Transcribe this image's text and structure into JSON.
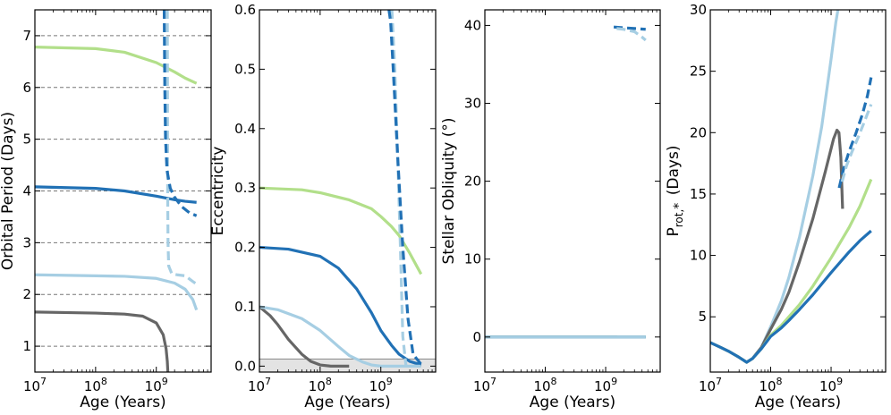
{
  "figure": {
    "n_panels": 4
  },
  "colors": {
    "dark_blue": "#2171b5",
    "light_blue": "#a6cee3",
    "light_green": "#b2df8a",
    "gray": "#666666",
    "gridline": "#777777",
    "shade": "#e3e3e3"
  },
  "chart_data": [
    {
      "type": "line",
      "id": "period",
      "title": "",
      "xlabel": "Age (Years)",
      "ylabel": "Orbital Period (Days)",
      "xscale": "log",
      "xlim": [
        10000000,
        8000000000
      ],
      "ylim": [
        0.5,
        7.5
      ],
      "x_ticks": [
        {
          "value": 10000000,
          "base": "10",
          "exp": "7"
        },
        {
          "value": 100000000,
          "base": "10",
          "exp": "8"
        },
        {
          "value": 1000000000,
          "base": "10",
          "exp": "9"
        }
      ],
      "y_ticks": [
        1,
        2,
        3,
        4,
        5,
        6,
        7
      ],
      "hlines": {
        "values": [
          1,
          2,
          3,
          4,
          5,
          6,
          7
        ],
        "style": "dashed"
      },
      "series": [
        {
          "name": "gray",
          "color": "#666666",
          "dash": false,
          "x": [
            10000000,
            30000000,
            100000000,
            300000000,
            600000000,
            1000000000,
            1300000000,
            1450000000,
            1520000000,
            1550000000
          ],
          "y": [
            1.66,
            1.65,
            1.64,
            1.62,
            1.58,
            1.45,
            1.22,
            0.95,
            0.7,
            0.5
          ]
        },
        {
          "name": "light blue",
          "color": "#a6cee3",
          "dash": false,
          "x": [
            10000000,
            100000000,
            300000000,
            1000000000,
            2000000000,
            3000000000,
            4000000000,
            4600000000
          ],
          "y": [
            2.38,
            2.36,
            2.35,
            2.31,
            2.22,
            2.1,
            1.9,
            1.7
          ]
        },
        {
          "name": "dark blue",
          "color": "#2171b5",
          "dash": false,
          "x": [
            10000000,
            100000000,
            300000000,
            1000000000,
            2000000000,
            3000000000,
            4600000000
          ],
          "y": [
            4.08,
            4.05,
            4.0,
            3.9,
            3.83,
            3.8,
            3.78
          ]
        },
        {
          "name": "light green",
          "color": "#b2df8a",
          "dash": false,
          "x": [
            10000000,
            100000000,
            300000000,
            1000000000,
            2000000000,
            3000000000,
            4600000000
          ],
          "y": [
            6.78,
            6.75,
            6.68,
            6.48,
            6.3,
            6.18,
            6.08
          ]
        },
        {
          "name": "light blue (dashed)",
          "color": "#a6cee3",
          "dash": true,
          "x": [
            1520000000,
            1540000000,
            1560000000,
            1600000000,
            1800000000,
            2200000000,
            3000000000,
            4000000000,
            4600000000
          ],
          "y": [
            7.5,
            4.0,
            3.0,
            2.55,
            2.4,
            2.38,
            2.36,
            2.25,
            2.2
          ]
        },
        {
          "name": "dark blue (dashed)",
          "color": "#2171b5",
          "dash": true,
          "x": [
            1350000000,
            1380000000,
            1420000000,
            1500000000,
            1700000000,
            2000000000,
            2600000000,
            3500000000,
            4600000000
          ],
          "y": [
            7.5,
            6.0,
            5.0,
            4.4,
            4.05,
            3.88,
            3.7,
            3.58,
            3.52
          ]
        }
      ]
    },
    {
      "type": "line",
      "id": "eccentricity",
      "title": "",
      "xlabel": "Age (Years)",
      "ylabel": "Eccentricity",
      "xscale": "log",
      "xlim": [
        10000000,
        8000000000
      ],
      "ylim": [
        -0.01,
        0.6
      ],
      "x_ticks": [
        {
          "value": 10000000,
          "base": "10",
          "exp": "7"
        },
        {
          "value": 100000000,
          "base": "10",
          "exp": "8"
        },
        {
          "value": 1000000000,
          "base": "10",
          "exp": "9"
        }
      ],
      "y_ticks": [
        "0.0",
        "0.1",
        "0.2",
        "0.3",
        "0.4",
        "0.5",
        "0.6"
      ],
      "shaded_band": {
        "y_from": -0.01,
        "y_to": 0.012
      },
      "series": [
        {
          "name": "gray",
          "color": "#666666",
          "dash": false,
          "x": [
            10000000,
            15000000,
            20000000,
            30000000,
            50000000,
            70000000,
            100000000,
            150000000,
            200000000,
            300000000
          ],
          "y": [
            0.1,
            0.085,
            0.07,
            0.045,
            0.02,
            0.008,
            0.002,
            0.0,
            0.0,
            0.0
          ]
        },
        {
          "name": "light blue",
          "color": "#a6cee3",
          "dash": false,
          "x": [
            10000000,
            20000000,
            50000000,
            100000000,
            200000000,
            300000000,
            500000000,
            700000000,
            1000000000,
            2000000000,
            4600000000
          ],
          "y": [
            0.1,
            0.095,
            0.08,
            0.06,
            0.033,
            0.018,
            0.007,
            0.002,
            0.0,
            0.0,
            0.0
          ]
        },
        {
          "name": "dark blue",
          "color": "#2171b5",
          "dash": false,
          "x": [
            10000000,
            30000000,
            100000000,
            200000000,
            400000000,
            700000000,
            1000000000,
            1500000000,
            2000000000,
            3000000000,
            4600000000
          ],
          "y": [
            0.2,
            0.197,
            0.185,
            0.165,
            0.13,
            0.09,
            0.06,
            0.035,
            0.02,
            0.008,
            0.002
          ]
        },
        {
          "name": "light green",
          "color": "#b2df8a",
          "dash": false,
          "x": [
            10000000,
            50000000,
            100000000,
            300000000,
            700000000,
            1000000000,
            1500000000,
            2000000000,
            3000000000,
            4600000000
          ],
          "y": [
            0.3,
            0.297,
            0.292,
            0.28,
            0.265,
            0.252,
            0.235,
            0.22,
            0.19,
            0.155
          ]
        },
        {
          "name": "light blue (dashed)",
          "color": "#a6cee3",
          "dash": true,
          "x": [
            1520000000,
            1700000000,
            1900000000,
            2100000000,
            2300000000,
            2600000000,
            4600000000
          ],
          "y": [
            0.6,
            0.5,
            0.35,
            0.2,
            0.05,
            0.0,
            0.0
          ]
        },
        {
          "name": "dark blue (dashed)",
          "color": "#2171b5",
          "dash": true,
          "x": [
            1360000000,
            1450000000,
            1600000000,
            1900000000,
            2300000000,
            2800000000,
            3400000000,
            4600000000
          ],
          "y": [
            0.6,
            0.58,
            0.5,
            0.35,
            0.2,
            0.08,
            0.02,
            0.003
          ]
        }
      ]
    },
    {
      "type": "line",
      "id": "obliquity",
      "title": "",
      "xlabel": "Age (Years)",
      "ylabel": "Stellar Obliquity (°)",
      "xscale": "log",
      "xlim": [
        10000000,
        8000000000
      ],
      "ylim": [
        -4.5,
        42
      ],
      "x_ticks": [
        {
          "value": 10000000,
          "base": "10",
          "exp": "7"
        },
        {
          "value": 100000000,
          "base": "10",
          "exp": "8"
        },
        {
          "value": 1000000000,
          "base": "10",
          "exp": "9"
        }
      ],
      "y_ticks": [
        0,
        10,
        20,
        30,
        40
      ],
      "series": [
        {
          "name": "gray",
          "color": "#666666",
          "dash": false,
          "x": [
            10000000,
            1550000000
          ],
          "y": [
            0,
            0
          ]
        },
        {
          "name": "light green",
          "color": "#b2df8a",
          "dash": false,
          "x": [
            10000000,
            4600000000
          ],
          "y": [
            0,
            0
          ]
        },
        {
          "name": "dark blue",
          "color": "#2171b5",
          "dash": false,
          "x": [
            10000000,
            4600000000
          ],
          "y": [
            0,
            0
          ]
        },
        {
          "name": "light blue",
          "color": "#a6cee3",
          "dash": false,
          "x": [
            10000000,
            4600000000
          ],
          "y": [
            0,
            0
          ]
        },
        {
          "name": "dark blue (dashed)",
          "color": "#2171b5",
          "dash": true,
          "x": [
            1360000000,
            2000000000,
            3000000000,
            4600000000
          ],
          "y": [
            39.8,
            39.7,
            39.6,
            39.5
          ]
        },
        {
          "name": "light blue (dashed)",
          "color": "#a6cee3",
          "dash": true,
          "x": [
            1520000000,
            2000000000,
            3000000000,
            4000000000,
            4600000000
          ],
          "y": [
            39.6,
            39.5,
            39.2,
            38.5,
            38.1
          ]
        }
      ]
    },
    {
      "type": "line",
      "id": "rotation",
      "title": "",
      "xlabel": "Age (Years)",
      "ylabel": "P_rot,* (Days)",
      "ylabel_parts": {
        "main": "P",
        "sub": "rot,",
        "star": "*",
        "unit": "(Days)"
      },
      "xscale": "log",
      "xlim": [
        10000000,
        8000000000
      ],
      "ylim": [
        0.5,
        30
      ],
      "x_ticks": [
        {
          "value": 10000000,
          "base": "10",
          "exp": "7"
        },
        {
          "value": 100000000,
          "base": "10",
          "exp": "8"
        },
        {
          "value": 1000000000,
          "base": "10",
          "exp": "9"
        }
      ],
      "y_ticks": [
        5,
        10,
        15,
        20,
        25,
        30
      ],
      "series": [
        {
          "name": "light blue",
          "color": "#a6cee3",
          "dash": false,
          "x": [
            10000000,
            15000000,
            20000000,
            30000000,
            40000000,
            50000000,
            70000000,
            100000000,
            150000000,
            200000000,
            300000000,
            500000000,
            700000000,
            1000000000,
            1200000000,
            1350000000
          ],
          "y": [
            2.9,
            2.5,
            2.2,
            1.7,
            1.3,
            1.6,
            2.5,
            4.2,
            6.3,
            8.2,
            11.5,
            16.5,
            20.5,
            26.0,
            29.0,
            30.5
          ]
        },
        {
          "name": "gray",
          "color": "#666666",
          "dash": false,
          "x": [
            10000000,
            15000000,
            20000000,
            30000000,
            40000000,
            50000000,
            70000000,
            100000000,
            150000000,
            200000000,
            300000000,
            500000000,
            800000000,
            1100000000,
            1250000000,
            1350000000,
            1450000000,
            1520000000,
            1550000000
          ],
          "y": [
            2.9,
            2.5,
            2.2,
            1.7,
            1.3,
            1.6,
            2.5,
            4.0,
            5.6,
            7.0,
            9.5,
            13.0,
            16.8,
            19.5,
            20.2,
            20.0,
            18.0,
            15.0,
            13.8
          ]
        },
        {
          "name": "light green",
          "color": "#b2df8a",
          "dash": false,
          "x": [
            10000000,
            15000000,
            20000000,
            30000000,
            40000000,
            50000000,
            70000000,
            100000000,
            150000000,
            200000000,
            300000000,
            500000000,
            1000000000,
            2000000000,
            3000000000,
            4600000000
          ],
          "y": [
            2.9,
            2.5,
            2.2,
            1.7,
            1.3,
            1.6,
            2.4,
            3.5,
            4.3,
            5.0,
            6.0,
            7.5,
            9.8,
            12.3,
            14.0,
            16.2
          ]
        },
        {
          "name": "dark blue",
          "color": "#2171b5",
          "dash": false,
          "x": [
            10000000,
            15000000,
            20000000,
            30000000,
            40000000,
            50000000,
            70000000,
            100000000,
            150000000,
            200000000,
            300000000,
            500000000,
            1000000000,
            2000000000,
            3000000000,
            4600000000
          ],
          "y": [
            2.9,
            2.5,
            2.2,
            1.7,
            1.3,
            1.6,
            2.4,
            3.4,
            4.1,
            4.7,
            5.6,
            6.8,
            8.6,
            10.3,
            11.2,
            12.0
          ]
        },
        {
          "name": "dark blue (dashed)",
          "color": "#2171b5",
          "dash": true,
          "x": [
            1360000000,
            1600000000,
            2000000000,
            2600000000,
            3300000000,
            4000000000,
            4600000000
          ],
          "y": [
            15.5,
            17.0,
            18.5,
            20.0,
            21.5,
            23.0,
            24.5
          ]
        },
        {
          "name": "light blue (dashed)",
          "color": "#a6cee3",
          "dash": true,
          "x": [
            1520000000,
            1800000000,
            2200000000,
            2800000000,
            3500000000,
            4200000000,
            4600000000
          ],
          "y": [
            16.0,
            17.3,
            18.4,
            19.6,
            20.8,
            21.8,
            22.3
          ]
        }
      ]
    }
  ]
}
